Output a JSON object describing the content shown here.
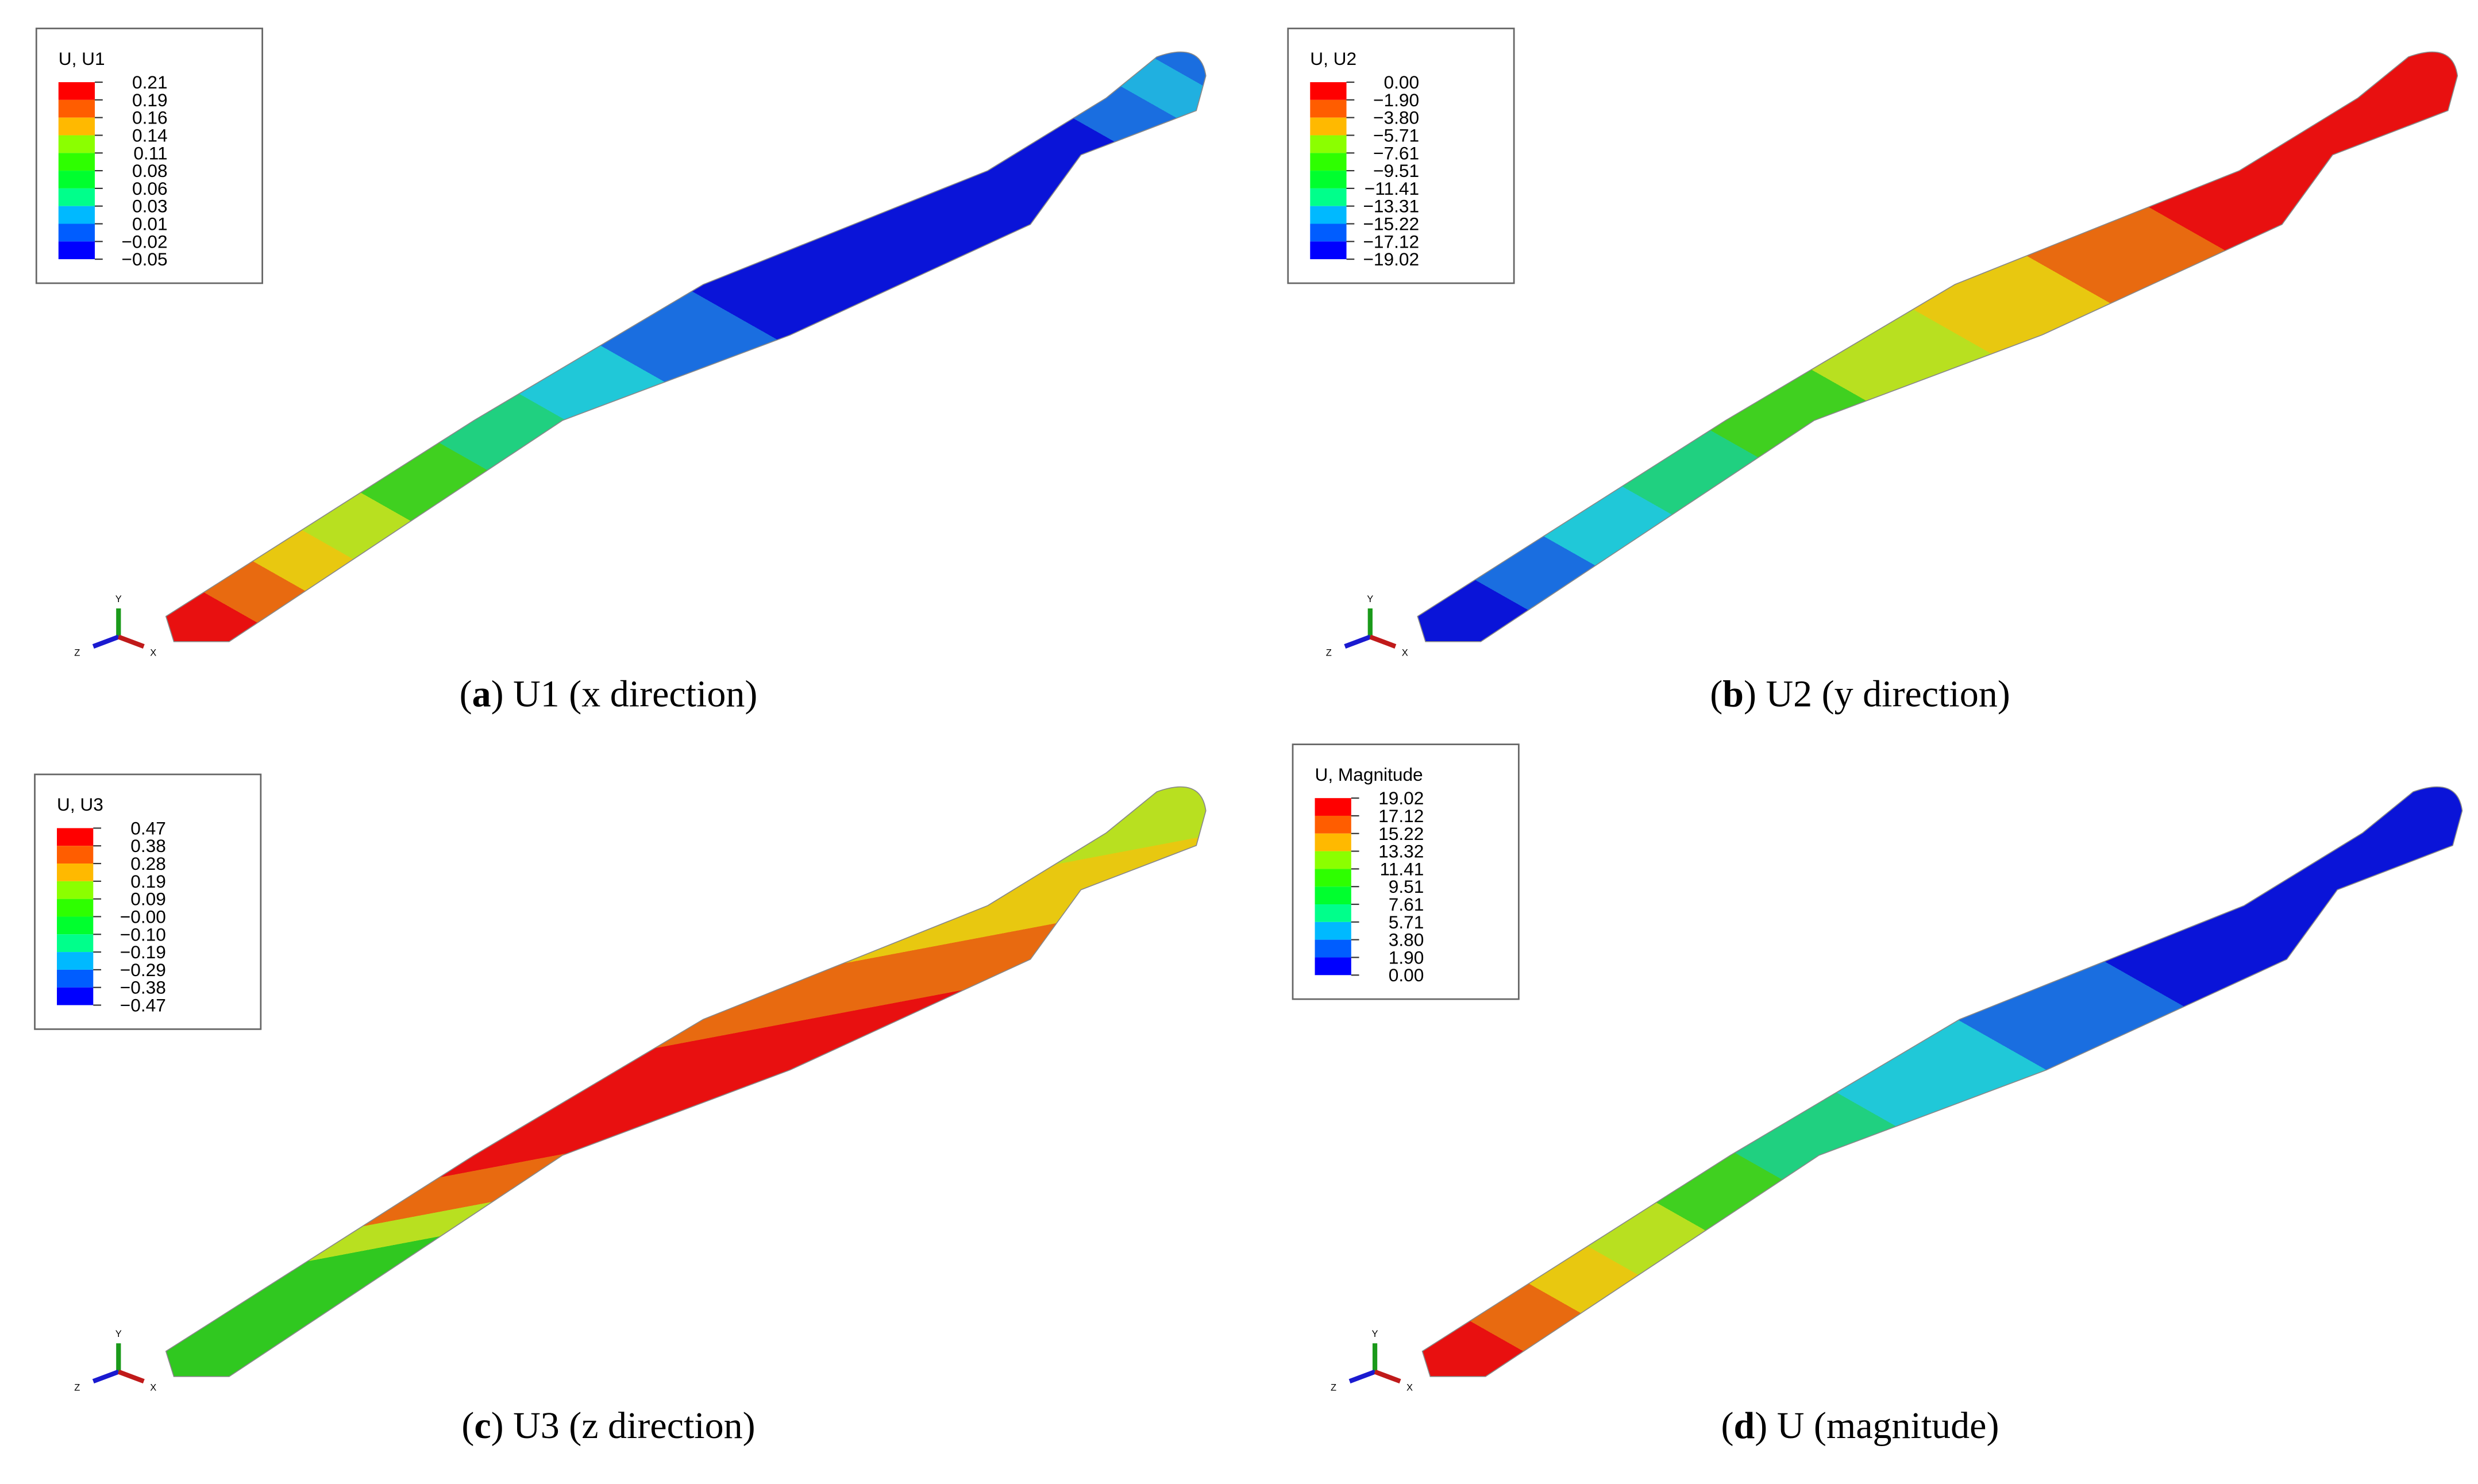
{
  "axis_labels": [
    "Y",
    "Z",
    "X"
  ],
  "panels": [
    {
      "legend": {
        "title": "U, U1",
        "values": [
          "0.21",
          "0.19",
          "0.16",
          "0.14",
          "0.11",
          "0.08",
          "0.06",
          "0.03",
          "0.01",
          "−0.02",
          "−0.05"
        ]
      },
      "caption": {
        "open": "(",
        "letter": "a",
        "text": ") U1 (x direction)"
      }
    },
    {
      "legend": {
        "title": "U, U2",
        "values": [
          "0.00",
          "−1.90",
          "−3.80",
          "−5.71",
          "−7.61",
          "−9.51",
          "−11.41",
          "−13.31",
          "−15.22",
          "−17.12",
          "−19.02"
        ]
      },
      "caption": {
        "open": "(",
        "letter": "b",
        "text": ") U2 (y direction)"
      }
    },
    {
      "legend": {
        "title": "U, U3",
        "values": [
          "0.47",
          "0.38",
          "0.28",
          "0.19",
          "0.09",
          "−0.00",
          "−0.10",
          "−0.19",
          "−0.29",
          "−0.38",
          "−0.47"
        ]
      },
      "caption": {
        "open": "(",
        "letter": "c",
        "text": ") U3 (z direction)"
      }
    },
    {
      "legend": {
        "title": "U, Magnitude",
        "values": [
          "19.02",
          "17.12",
          "15.22",
          "13.32",
          "11.41",
          "9.51",
          "7.61",
          "5.71",
          "3.80",
          "1.90",
          "0.00"
        ]
      },
      "caption": {
        "open": "(",
        "letter": "d",
        "text": ") U (magnitude)"
      }
    }
  ]
}
